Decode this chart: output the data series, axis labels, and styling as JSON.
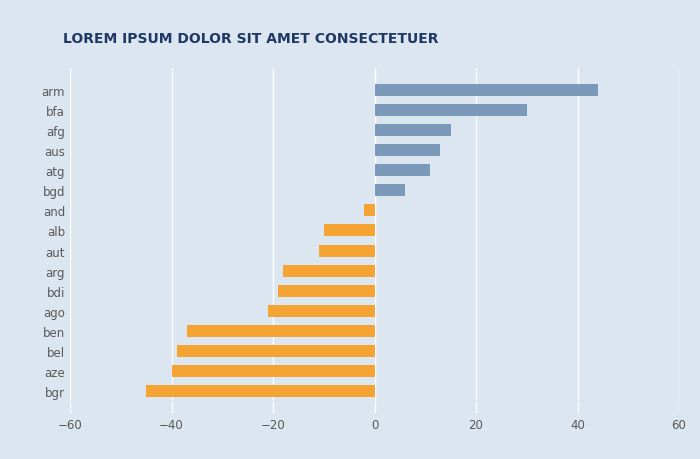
{
  "categories": [
    "arm",
    "bfa",
    "afg",
    "aus",
    "atg",
    "bgd",
    "and",
    "alb",
    "aut",
    "arg",
    "bdi",
    "ago",
    "ben",
    "bel",
    "aze",
    "bgr"
  ],
  "values": [
    44,
    30,
    15,
    13,
    11,
    6,
    -2,
    -10,
    -11,
    -18,
    -19,
    -21,
    -37,
    -39,
    -40,
    -45
  ],
  "bar_colors": [
    "#7b99b8",
    "#7b99b8",
    "#7b99b8",
    "#7b99b8",
    "#7b99b8",
    "#7b99b8",
    "#f5a332",
    "#f5a332",
    "#f5a332",
    "#f5a332",
    "#f5a332",
    "#f5a332",
    "#f5a332",
    "#f5a332",
    "#f5a332",
    "#f5a332"
  ],
  "title": "LOREM IPSUM DOLOR SIT AMET CONSECTETUER",
  "title_color": "#1f3864",
  "title_fontsize": 10,
  "xlim": [
    -60,
    60
  ],
  "xticks": [
    -60,
    -40,
    -20,
    0,
    20,
    40,
    60
  ],
  "background_color": "#dce6f1",
  "plot_bg_color": "#dce6f1",
  "bar_height": 0.6,
  "grid_color": "#ffffff",
  "tick_label_color": "#595959",
  "tick_fontsize": 8.5,
  "label_fontsize": 8.5
}
